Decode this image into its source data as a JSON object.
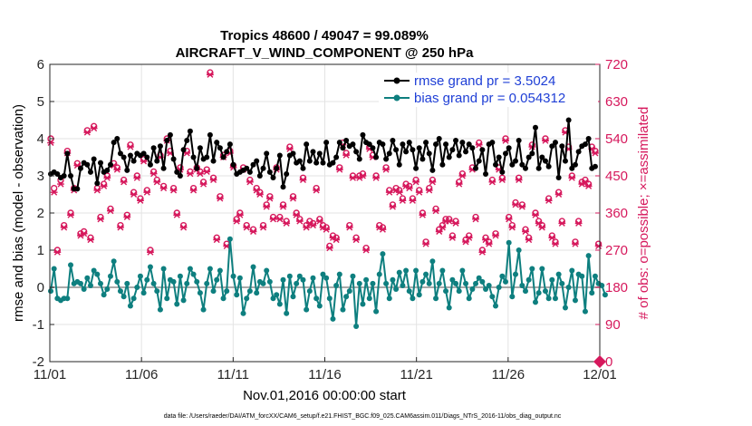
{
  "chart_data": {
    "type": "line",
    "title_line1": "Tropics 48600 / 49047 = 99.089%",
    "title_line2": "AIRCRAFT_V_WIND_COMPONENT @ 250 hPa",
    "xlabel": "Nov.01,2016 00:00:00 start",
    "ylabel_left": "rmse and bias (model - observation)",
    "ylabel_right": "# of obs: o=possible; ×=assimilated",
    "footer": "data file: /Users/raeder/DAI/ATM_forcXX/CAM6_setup/f.e21.FHIST_BGC.f09_025.CAM6assim.011/Diags_NTrS_2016-11/obs_diag_output.nc",
    "x_tick_labels": [
      "11/01",
      "11/06",
      "11/11",
      "11/16",
      "11/21",
      "11/26",
      "12/01"
    ],
    "x_range_days": [
      0,
      30
    ],
    "ylim_left": [
      -2,
      6
    ],
    "y_left_ticks": [
      "-2",
      "-1",
      "0",
      "1",
      "2",
      "3",
      "4",
      "5",
      "6"
    ],
    "ylim_right": [
      0,
      720
    ],
    "y_right_ticks": [
      "0",
      "90",
      "180",
      "270",
      "360",
      "450",
      "540",
      "630",
      "720"
    ],
    "legend_location": "top-right",
    "colors": {
      "rmse": "#000000",
      "bias": "#0e7f7f",
      "obs": "#d6185c",
      "zero_line": "#aaaaaa"
    },
    "series": [
      {
        "name": "rmse grand pr = 3.5024",
        "values": [
          3.05,
          3.1,
          3.05,
          2.95,
          3.0,
          3.6,
          3.0,
          2.65,
          2.65,
          3.2,
          3.35,
          3.3,
          3.1,
          3.45,
          2.8,
          3.35,
          3.1,
          3.15,
          3.3,
          3.9,
          4.0,
          3.6,
          3.5,
          3.15,
          3.55,
          3.4,
          3.6,
          3.55,
          3.6,
          3.5,
          3.3,
          3.75,
          3.4,
          3.8,
          3.2,
          3.95,
          4.1,
          3.45,
          3.1,
          3.0,
          3.7,
          3.95,
          4.2,
          3.5,
          3.2,
          3.75,
          3.45,
          3.5,
          4.1,
          3.4,
          3.9,
          3.75,
          3.5,
          3.65,
          3.85,
          3.3,
          3.05,
          3.1,
          3.15,
          3.2,
          3.1,
          3.3,
          3.4,
          3.0,
          3.2,
          3.6,
          3.1,
          2.95,
          3.2,
          3.55,
          2.7,
          3.05,
          3.55,
          3.6,
          3.35,
          3.4,
          3.2,
          3.85,
          3.4,
          3.65,
          3.35,
          3.6,
          3.35,
          3.9,
          3.3,
          3.35,
          3.5,
          3.9,
          3.75,
          3.95,
          3.8,
          3.85,
          3.65,
          3.45,
          4.1,
          3.9,
          3.85,
          3.75,
          3.5,
          3.9,
          3.85,
          3.45,
          3.6,
          3.95,
          3.7,
          3.3,
          3.85,
          3.65,
          3.9,
          3.7,
          3.2,
          3.75,
          3.45,
          3.9,
          3.6,
          3.15,
          3.85,
          4.0,
          3.3,
          3.85,
          3.5,
          3.7,
          3.95,
          3.55,
          3.9,
          3.65,
          3.85,
          3.75,
          3.2,
          3.4,
          3.7,
          3.05,
          3.85,
          3.9,
          3.3,
          3.5,
          3.1,
          3.6,
          3.75,
          3.3,
          3.4,
          3.95,
          3.3,
          3.2,
          3.5,
          3.6,
          4.3,
          3.2,
          3.5,
          3.4,
          3.25,
          3.8,
          3.9,
          2.95,
          3.8,
          3.4,
          4.5,
          3.2,
          3.3,
          3.65,
          3.8,
          3.85,
          4.0,
          3.2,
          3.25
        ]
      },
      {
        "name": "bias grand pr = 0.054312",
        "values": [
          -0.1,
          0.5,
          -0.3,
          -0.35,
          -0.3,
          -0.3,
          0.6,
          0.1,
          0.15,
          0.1,
          -0.05,
          0.25,
          0.05,
          0.45,
          0.35,
          0.1,
          -0.2,
          -0.05,
          0.3,
          0.7,
          0.15,
          -0.1,
          -0.25,
          0.1,
          -0.5,
          -0.3,
          0.0,
          0.3,
          -0.15,
          0.2,
          0.55,
          0.1,
          -0.1,
          -0.6,
          0.5,
          -0.3,
          0.2,
          0.15,
          -0.45,
          0.3,
          -0.35,
          0.1,
          0.5,
          0.35,
          0.15,
          -0.15,
          -0.6,
          0.1,
          0.5,
          -0.1,
          0.2,
          0.45,
          -0.3,
          -0.1,
          1.3,
          0.3,
          -0.2,
          0.25,
          -0.7,
          -0.3,
          -0.1,
          0.55,
          -0.15,
          0.15,
          0.1,
          0.45,
          0.15,
          -0.3,
          -0.2,
          -0.45,
          0.2,
          -0.7,
          0.3,
          -0.25,
          0.1,
          0.3,
          0.2,
          -0.6,
          -0.1,
          0.25,
          -0.3,
          -0.5,
          0.35,
          0.25,
          -0.3,
          -0.85,
          0.05,
          0.35,
          -0.6,
          -0.25,
          -0.1,
          0.3,
          -1.05,
          0.1,
          -0.45,
          0.2,
          -0.3,
          0.1,
          -0.65,
          0.35,
          0.9,
          0.1,
          -0.3,
          0.2,
          -0.05,
          0.4,
          0.05,
          0.45,
          -0.1,
          -0.3,
          0.45,
          -0.2,
          0.15,
          0.35,
          0.1,
          0.7,
          -0.3,
          0.1,
          0.45,
          -0.1,
          -0.55,
          0.2,
          0.1,
          -0.1,
          0.45,
          0.1,
          -0.3,
          -0.05,
          0.1,
          0.25,
          0.15,
          -0.05,
          0.05,
          -0.25,
          -0.5,
          0.0,
          0.3,
          0.15,
          1.2,
          -0.25,
          0.35,
          1.0,
          0.05,
          -0.1,
          0.2,
          0.5,
          -0.4,
          -0.15,
          0.5,
          -0.1,
          -0.3,
          0.2,
          -0.3,
          0.35,
          0.1,
          -0.55,
          0.0,
          0.45,
          -0.35,
          0.35,
          0.3,
          -0.65,
          0.85,
          -0.15,
          0.3,
          0.1,
          0.05,
          -0.2
        ]
      },
      {
        "name": "obs possible (right axis)",
        "values": [
          540,
          420,
          270,
          440,
          330,
          510,
          360,
          420,
          480,
          310,
          315,
          560,
          300,
          570,
          420,
          350,
          430,
          450,
          370,
          480,
          470,
          330,
          440,
          355,
          525,
          410,
          450,
          395,
          490,
          415,
          270,
          460,
          440,
          500,
          425,
          540,
          510,
          420,
          360,
          470,
          330,
          510,
          460,
          420,
          470,
          460,
          435,
          465,
          700,
          445,
          300,
          400,
          500,
          285,
          510,
          475,
          345,
          360,
          470,
          330,
          440,
          320,
          420,
          410,
          330,
          380,
          400,
          350,
          470,
          350,
          380,
          340,
          520,
          400,
          360,
          345,
          445,
          330,
          340,
          335,
          420,
          345,
          330,
          325,
          280,
          305,
          300,
          470,
          530,
          505,
          330,
          450,
          300,
          450,
          455,
          275,
          520,
          500,
          450,
          330,
          325,
          470,
          415,
          380,
          420,
          415,
          395,
          430,
          425,
          395,
          440,
          415,
          360,
          290,
          420,
          440,
          370,
          320,
          330,
          345,
          345,
          305,
          340,
          435,
          455,
          295,
          305,
          470,
          350,
          530,
          270,
          300,
          290,
          440,
          310,
          470,
          445,
          540,
          350,
          330,
          385,
          445,
          380,
          320,
          300,
          525,
          360,
          340,
          330,
          540,
          395,
          305,
          290,
          410,
          340,
          560,
          520,
          450,
          290,
          340,
          435,
          440,
          430,
          520,
          510,
          285
        ]
      },
      {
        "name": "obs assimilated (right axis)",
        "values": [
          530,
          410,
          265,
          430,
          325,
          505,
          355,
          415,
          475,
          305,
          310,
          555,
          295,
          565,
          415,
          345,
          425,
          445,
          365,
          475,
          465,
          325,
          435,
          350,
          520,
          405,
          445,
          390,
          485,
          410,
          265,
          455,
          435,
          495,
          420,
          535,
          505,
          415,
          355,
          465,
          325,
          505,
          455,
          415,
          465,
          455,
          430,
          460,
          695,
          440,
          295,
          395,
          495,
          280,
          505,
          470,
          340,
          355,
          465,
          325,
          435,
          315,
          415,
          405,
          325,
          375,
          395,
          345,
          465,
          345,
          375,
          335,
          515,
          395,
          355,
          340,
          440,
          325,
          335,
          330,
          415,
          340,
          325,
          320,
          275,
          300,
          295,
          465,
          525,
          500,
          325,
          445,
          295,
          445,
          450,
          270,
          515,
          495,
          445,
          325,
          320,
          465,
          410,
          375,
          415,
          410,
          390,
          425,
          420,
          390,
          435,
          410,
          355,
          285,
          415,
          435,
          365,
          315,
          325,
          340,
          340,
          300,
          335,
          430,
          450,
          290,
          300,
          465,
          345,
          525,
          265,
          295,
          285,
          435,
          305,
          465,
          440,
          535,
          345,
          325,
          380,
          440,
          375,
          315,
          295,
          520,
          355,
          335,
          325,
          535,
          390,
          300,
          285,
          405,
          335,
          555,
          515,
          445,
          285,
          335,
          430,
          435,
          425,
          515,
          505,
          280
        ]
      }
    ]
  }
}
